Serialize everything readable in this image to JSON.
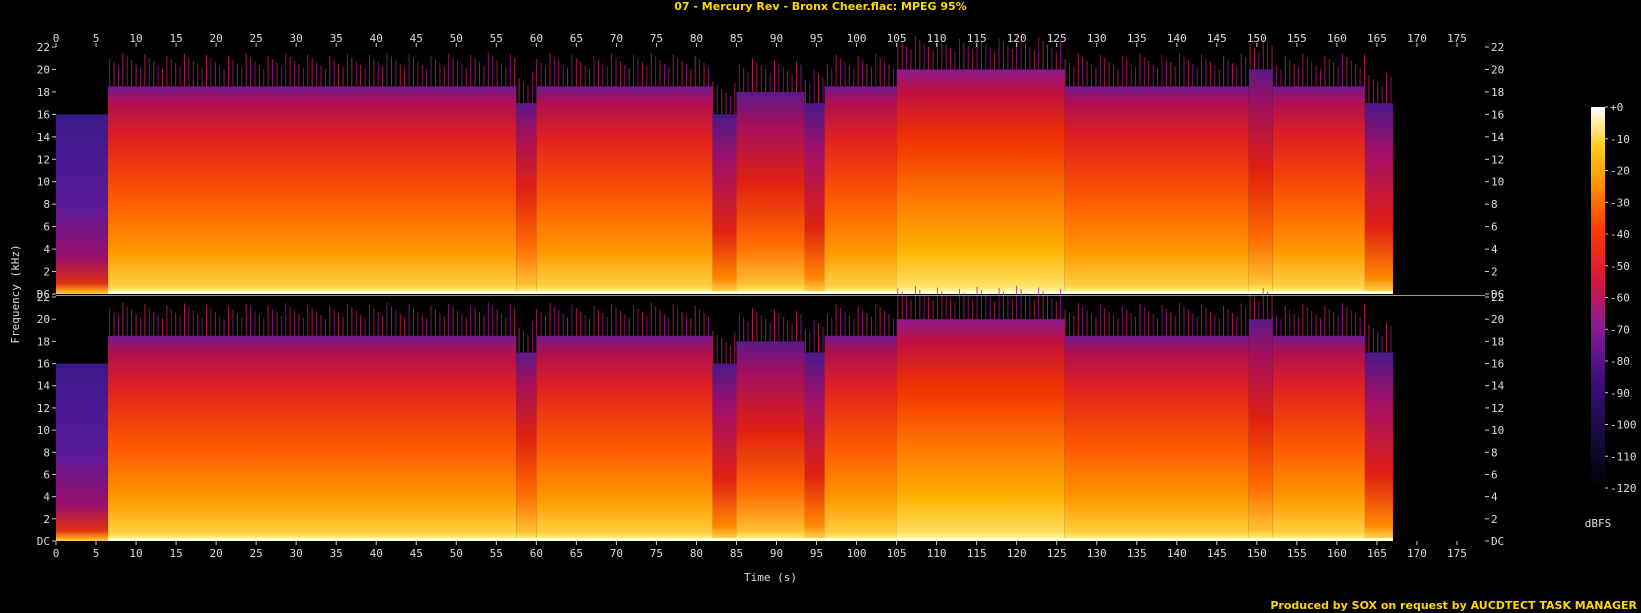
{
  "title": "07 - Mercury Rev - Bronx Cheer.flac: MPEG 95%",
  "credit": "Produced by SOX on request by AUCDTECT TASK MANAGER",
  "colors": {
    "text": "#dddddd",
    "title": "#ffd800",
    "background": "#000000"
  },
  "chart_data": {
    "type": "heatmap",
    "title": "07 - Mercury Rev - Bronx Cheer.flac: MPEG 95%",
    "xlabel": "Time (s)",
    "ylabel": "Frequency (kHz)",
    "xlim": [
      0,
      178.5
    ],
    "ylim": [
      0,
      22
    ],
    "x_ticks": [
      "0",
      "5",
      "10",
      "15",
      "20",
      "25",
      "30",
      "35",
      "40",
      "45",
      "50",
      "55",
      "60",
      "65",
      "70",
      "75",
      "80",
      "85",
      "90",
      "95",
      "100",
      "105",
      "110",
      "115",
      "120",
      "125",
      "130",
      "135",
      "140",
      "145",
      "150",
      "155",
      "160",
      "165",
      "170",
      "175"
    ],
    "y_ticks": [
      "DC",
      "2",
      "4",
      "6",
      "8",
      "10",
      "12",
      "14",
      "16",
      "18",
      "20",
      "22"
    ],
    "channels": 2,
    "audio_end_s": 167,
    "colorbar": {
      "label": "dBFS",
      "ticks": [
        "+0",
        "-10",
        "-20",
        "-30",
        "-40",
        "-50",
        "-60",
        "-70",
        "-80",
        "-90",
        "-100",
        "-110",
        "-120"
      ],
      "range": [
        -120,
        0
      ]
    },
    "segments": [
      {
        "start": 0,
        "end": 6.5,
        "cutoff_khz": 16,
        "level": 0.35
      },
      {
        "start": 6.5,
        "end": 57.5,
        "cutoff_khz": 18.5,
        "level": 0.75
      },
      {
        "start": 57.5,
        "end": 60,
        "cutoff_khz": 17,
        "level": 0.6
      },
      {
        "start": 60,
        "end": 82,
        "cutoff_khz": 18.5,
        "level": 0.75
      },
      {
        "start": 82,
        "end": 85,
        "cutoff_khz": 16,
        "level": 0.5
      },
      {
        "start": 85,
        "end": 93.5,
        "cutoff_khz": 18,
        "level": 0.7
      },
      {
        "start": 93.5,
        "end": 96,
        "cutoff_khz": 17,
        "level": 0.55
      },
      {
        "start": 96,
        "end": 105,
        "cutoff_khz": 18.5,
        "level": 0.75
      },
      {
        "start": 105,
        "end": 126,
        "cutoff_khz": 20,
        "level": 0.8
      },
      {
        "start": 126,
        "end": 149,
        "cutoff_khz": 18.5,
        "level": 0.72
      },
      {
        "start": 149,
        "end": 152,
        "cutoff_khz": 20,
        "level": 0.6
      },
      {
        "start": 152,
        "end": 163.5,
        "cutoff_khz": 18.5,
        "level": 0.72
      },
      {
        "start": 163.5,
        "end": 167,
        "cutoff_khz": 17,
        "level": 0.5
      }
    ]
  }
}
